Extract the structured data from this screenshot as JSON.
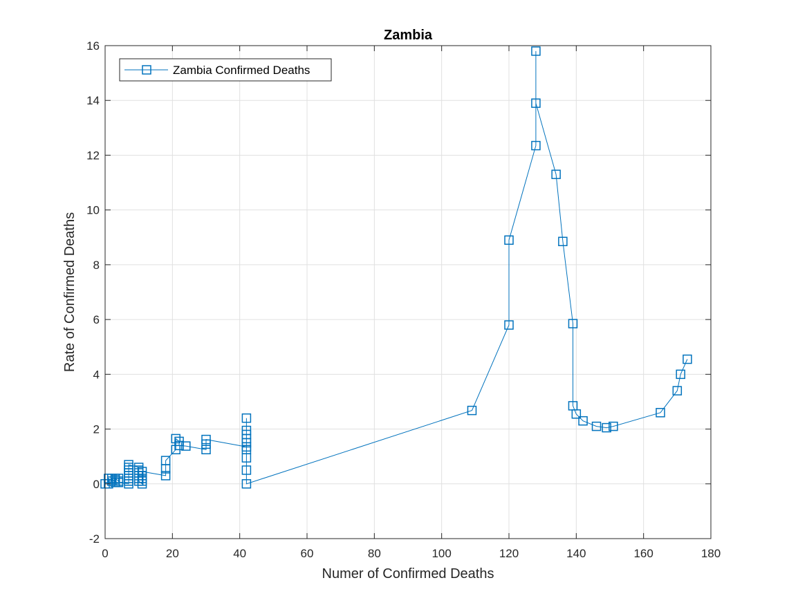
{
  "colors": {
    "series": "#0072BD",
    "axis": "#262626",
    "grid": "#e0e0e0"
  },
  "chart_data": {
    "type": "line",
    "title": "Zambia",
    "xlabel": "Numer of Confirmed Deaths",
    "ylabel": "Rate of Confirmed Deaths",
    "xlim": [
      0,
      180
    ],
    "ylim": [
      -2,
      16
    ],
    "xticks": [
      0,
      20,
      40,
      60,
      80,
      100,
      120,
      140,
      160,
      180
    ],
    "yticks": [
      -2,
      0,
      2,
      4,
      6,
      8,
      10,
      12,
      14,
      16
    ],
    "grid": true,
    "legend_position": "top-left",
    "marker": "square",
    "series": [
      {
        "name": "Zambia Confirmed Deaths",
        "points": [
          [
            0,
            0
          ],
          [
            1,
            0
          ],
          [
            1,
            0.2
          ],
          [
            2,
            0.1
          ],
          [
            2,
            0.2
          ],
          [
            3,
            0.05
          ],
          [
            3,
            0.15
          ],
          [
            3,
            0.2
          ],
          [
            4,
            0.1
          ],
          [
            4,
            0.2
          ],
          [
            4,
            0.05
          ],
          [
            7,
            0
          ],
          [
            7,
            0.1
          ],
          [
            7,
            0.2
          ],
          [
            7,
            0.3
          ],
          [
            7,
            0.4
          ],
          [
            7,
            0.5
          ],
          [
            7,
            0.6
          ],
          [
            7,
            0.7
          ],
          [
            10,
            0.6
          ],
          [
            10,
            0.5
          ],
          [
            10,
            0.4
          ],
          [
            10,
            0.3
          ],
          [
            10,
            0.2
          ],
          [
            10,
            0.1
          ],
          [
            11,
            0
          ],
          [
            11,
            0.1
          ],
          [
            11,
            0.2
          ],
          [
            11,
            0.3
          ],
          [
            11,
            0.45
          ],
          [
            18,
            0.3
          ],
          [
            18,
            0.55
          ],
          [
            18,
            0.85
          ],
          [
            21,
            1.25
          ],
          [
            21,
            1.65
          ],
          [
            22,
            1.55
          ],
          [
            22,
            1.4
          ],
          [
            24,
            1.38
          ],
          [
            30,
            1.25
          ],
          [
            30,
            1.45
          ],
          [
            30,
            1.62
          ],
          [
            42,
            1.35
          ],
          [
            42,
            1.5
          ],
          [
            42,
            1.65
          ],
          [
            42,
            1.8
          ],
          [
            42,
            1.95
          ],
          [
            42,
            2.4
          ],
          [
            42,
            1.25
          ],
          [
            42,
            0.95
          ],
          [
            42,
            0.5
          ],
          [
            42,
            0
          ],
          [
            109,
            2.68
          ],
          [
            120,
            5.8
          ],
          [
            120,
            8.9
          ],
          [
            128,
            12.35
          ],
          [
            128,
            15.8
          ],
          [
            128,
            13.9
          ],
          [
            134,
            11.3
          ],
          [
            136,
            8.85
          ],
          [
            139,
            5.85
          ],
          [
            139,
            2.85
          ],
          [
            140,
            2.55
          ],
          [
            142,
            2.3
          ],
          [
            146,
            2.1
          ],
          [
            149,
            2.05
          ],
          [
            151,
            2.1
          ],
          [
            165,
            2.6
          ],
          [
            170,
            3.4
          ],
          [
            171,
            4.0
          ],
          [
            173,
            4.55
          ]
        ]
      }
    ]
  }
}
